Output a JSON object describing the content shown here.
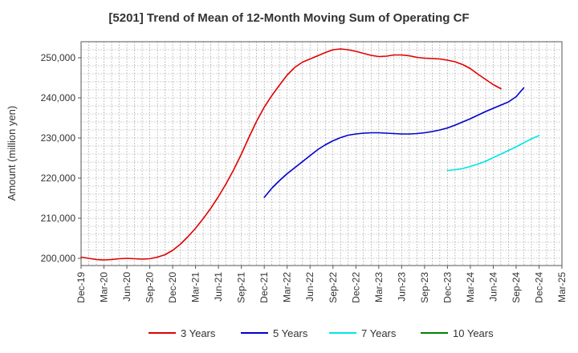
{
  "chart_data": {
    "type": "line",
    "title": "[5201]  Trend of Mean of 12-Month Moving Sum of Operating CF",
    "xlabel": "",
    "ylabel": "Amount (million yen)",
    "x_tick_labels": [
      "Dec-19",
      "Mar-20",
      "Jun-20",
      "Sep-20",
      "Dec-20",
      "Mar-21",
      "Jun-21",
      "Sep-21",
      "Dec-21",
      "Mar-22",
      "Jun-22",
      "Sep-22",
      "Dec-22",
      "Mar-23",
      "Jun-23",
      "Sep-23",
      "Dec-23",
      "Mar-24",
      "Jun-24",
      "Sep-24",
      "Dec-24",
      "Mar-25"
    ],
    "y_ticks": [
      200000,
      210000,
      220000,
      230000,
      240000,
      250000
    ],
    "y_tick_labels": [
      "200,000",
      "210,000",
      "220,000",
      "230,000",
      "240,000",
      "250,000"
    ],
    "ylim": [
      198200,
      254000
    ],
    "x_range": [
      "Dec-19",
      "Mar-25"
    ],
    "grid": true,
    "legend_position": "bottom",
    "series": [
      {
        "name": "3 Years",
        "color": "#e00000",
        "start": "Dec-19",
        "values": [
          200300,
          200000,
          199700,
          199600,
          199700,
          199900,
          200000,
          199900,
          199800,
          199900,
          200300,
          200900,
          202000,
          203500,
          205400,
          207500,
          209900,
          212500,
          215400,
          218600,
          222100,
          226000,
          230200,
          234200,
          237700,
          240600,
          243200,
          245700,
          247600,
          248900,
          249700,
          250500,
          251300,
          252000,
          252200,
          252000,
          251600,
          251100,
          250600,
          250300,
          250400,
          250700,
          250700,
          250500,
          250100,
          249900,
          249800,
          249700,
          249400,
          249000,
          248300,
          247300,
          245900,
          244600,
          243300,
          242300
        ]
      },
      {
        "name": "5 Years",
        "color": "#0000cc",
        "start": "Dec-21",
        "values": [
          215200,
          217500,
          219400,
          221100,
          222600,
          224100,
          225600,
          227100,
          228300,
          229300,
          230100,
          230700,
          231000,
          231200,
          231300,
          231300,
          231200,
          231100,
          231000,
          231000,
          231100,
          231300,
          231600,
          232000,
          232500,
          233200,
          234000,
          234800,
          235700,
          236600,
          237400,
          238200,
          239000,
          240300,
          242500
        ]
      },
      {
        "name": "7 Years",
        "color": "#00e5e5",
        "start": "Dec-23",
        "values": [
          221900,
          222100,
          222400,
          222900,
          223500,
          224200,
          225100,
          226000,
          226900,
          227800,
          228800,
          229800,
          230600
        ]
      },
      {
        "name": "10 Years",
        "color": "#008000",
        "start": "Dec-24",
        "values": []
      }
    ]
  }
}
